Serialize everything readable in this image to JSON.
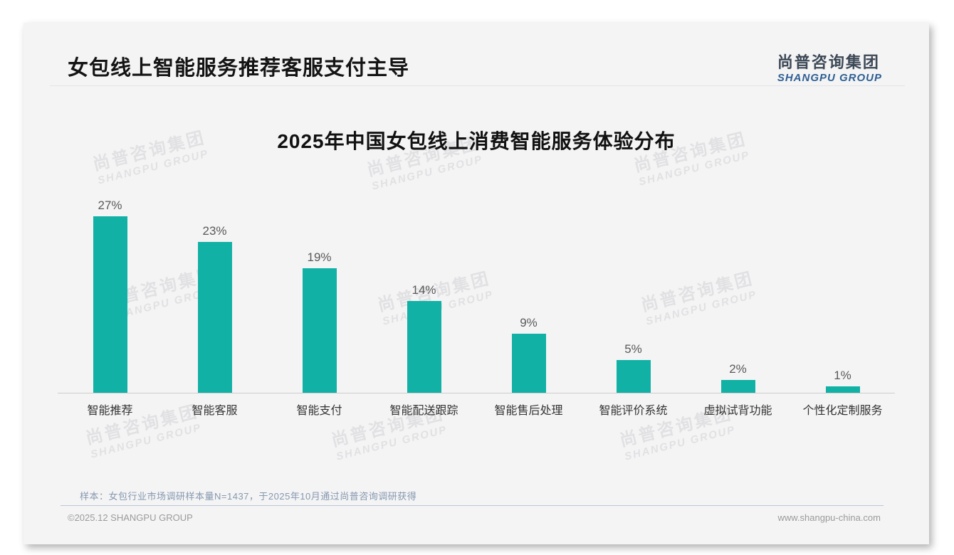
{
  "page": {
    "title": "女包线上智能服务推荐客服支付主导"
  },
  "logo": {
    "cn": "尚普咨询集团",
    "en": "SHANGPU GROUP"
  },
  "watermark": {
    "line1": "尚普咨询集团",
    "line2": "SHANGPU GROUP"
  },
  "chart_data": {
    "type": "bar",
    "title": "2025年中国女包线上消费智能服务体验分布",
    "categories": [
      "智能推荐",
      "智能客服",
      "智能支付",
      "智能配送跟踪",
      "智能售后处理",
      "智能评价系统",
      "虚拟试背功能",
      "个性化定制服务"
    ],
    "values": [
      27,
      23,
      19,
      14,
      9,
      5,
      2,
      1
    ],
    "unit": "%",
    "xlabel": "",
    "ylabel": "",
    "ylim": [
      0,
      30
    ],
    "grid": false,
    "legend": "none",
    "bar_color": "#12b1a5",
    "value_label_color": "#595959",
    "axis_line_color": "#cccccc"
  },
  "note": "样本：女包行业市场调研样本量N=1437，于2025年10月通过尚普咨询调研获得",
  "footer": {
    "left": "©2025.12 SHANGPU GROUP",
    "right": "www.shangpu-china.com"
  },
  "colors": {
    "card_bg": "#f4f4f5",
    "accent_teal": "#12b1a5",
    "logo_blue": "#2e5f93"
  }
}
